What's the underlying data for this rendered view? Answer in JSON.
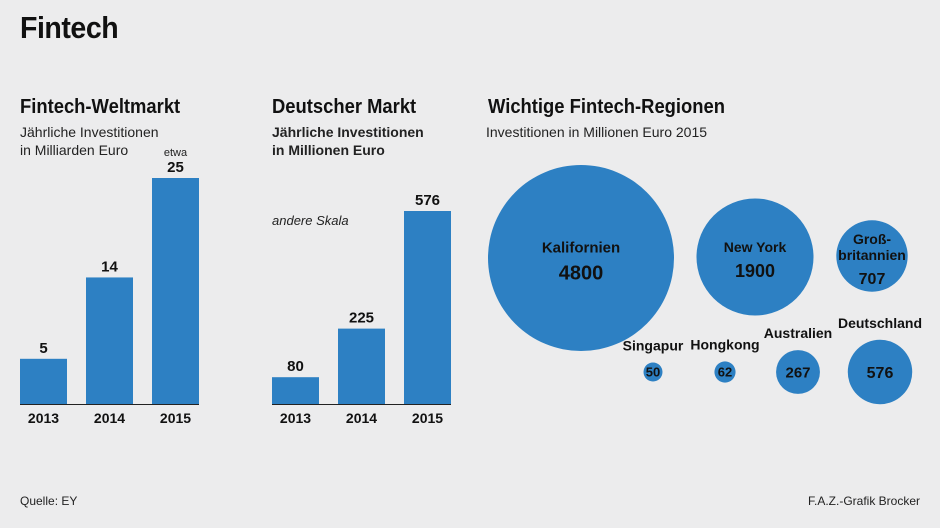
{
  "title": "Fintech",
  "footer": {
    "source": "Quelle: EY",
    "credit": "F.A.Z.-Grafik Brocker"
  },
  "colors": {
    "bar": "#2d80c3",
    "background": "#ececed"
  },
  "chart_data": [
    {
      "type": "bar",
      "title": "Fintech-Weltmarkt",
      "subtitle_lines": [
        "Jährliche Investitionen",
        "in Milliarden Euro"
      ],
      "categories": [
        "2013",
        "2014",
        "2015"
      ],
      "values": [
        5,
        14,
        25
      ],
      "value_labels": [
        "5",
        "14",
        "25"
      ],
      "approx_label": "etwa",
      "ylim": [
        0,
        25
      ],
      "grid": false
    },
    {
      "type": "bar",
      "title": "Deutscher Markt",
      "subtitle_lines": [
        "Jährliche Investitionen",
        "in Millionen Euro"
      ],
      "note": "andere Skala",
      "categories": [
        "2013",
        "2014",
        "2015"
      ],
      "values": [
        80,
        225,
        576
      ],
      "value_labels": [
        "80",
        "225",
        "576"
      ],
      "ylim": [
        0,
        576
      ],
      "grid": false
    },
    {
      "type": "bubble",
      "title": "Wichtige Fintech-Regionen",
      "subtitle": "Investitionen in Millionen Euro 2015",
      "items": [
        {
          "name": "Kalifornien",
          "value": 4800,
          "label": "4800"
        },
        {
          "name": "New York",
          "value": 1900,
          "label": "1900"
        },
        {
          "name": "Groß-\nbritannien",
          "value": 707,
          "label": "707"
        },
        {
          "name": "Singapur",
          "value": 50,
          "label": "50"
        },
        {
          "name": "Hongkong",
          "value": 62,
          "label": "62"
        },
        {
          "name": "Australien",
          "value": 267,
          "label": "267"
        },
        {
          "name": "Deutschland",
          "value": 576,
          "label": "576"
        }
      ]
    }
  ]
}
